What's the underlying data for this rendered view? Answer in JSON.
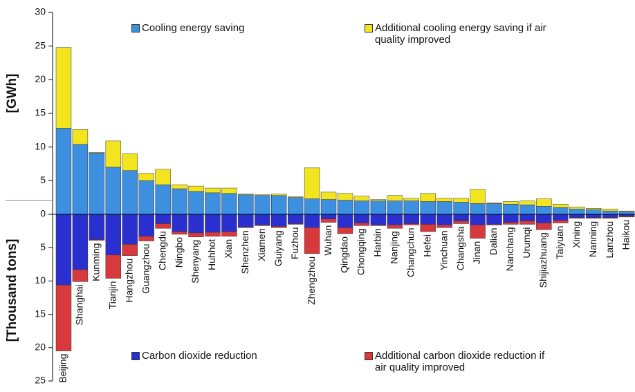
{
  "chart_data": {
    "type": "bar",
    "y_label": "[GWh]",
    "y2_label": "[Thousand tons]",
    "ylim": [
      0,
      30
    ],
    "yticks": [
      0,
      5,
      10,
      15,
      20,
      25,
      30
    ],
    "y2lim": [
      0,
      25
    ],
    "y2ticks": [
      5,
      10,
      15,
      20,
      25
    ],
    "categories": [
      "Beijing",
      "Shanghai",
      "Kunming",
      "Tianjin",
      "Hangzhou",
      "Guangzhou",
      "Chengdu",
      "Ningbo",
      "Shenyang",
      "Huhhot",
      "Xian",
      "Shenzhen",
      "Xiamen",
      "Guiyang",
      "Fuzhou",
      "Zhengzhou",
      "Wuhan",
      "Qingdao",
      "Chongqing",
      "Harbin",
      "Nanjing",
      "Changchun",
      "Hefei",
      "Yinchuan",
      "Changsha",
      "Jinan",
      "Dalian",
      "Nanchang",
      "Urumqi",
      "Shijiazhuang",
      "Taiyuan",
      "Xining",
      "Nanning",
      "Lanzhou",
      "Haikou"
    ],
    "series": [
      {
        "name": "Cooling energy saving",
        "color": "#3d8fe0",
        "axis": "y",
        "values": [
          12.8,
          10.4,
          9.1,
          7.0,
          6.5,
          5.0,
          4.4,
          3.8,
          3.4,
          3.2,
          3.1,
          2.9,
          2.8,
          2.8,
          2.5,
          2.3,
          2.2,
          2.1,
          2.0,
          2.0,
          2.0,
          2.0,
          1.9,
          1.9,
          1.8,
          1.6,
          1.6,
          1.5,
          1.4,
          1.2,
          1.0,
          0.8,
          0.7,
          0.5,
          0.4
        ]
      },
      {
        "name": "Additional cooling energy saving if air quality improved",
        "color": "#f2e41e",
        "axis": "y",
        "values": [
          12.0,
          2.2,
          0.1,
          3.9,
          2.5,
          1.1,
          2.3,
          0.6,
          0.8,
          0.7,
          0.8,
          0.1,
          0.1,
          0.2,
          0.1,
          4.6,
          1.1,
          1.0,
          0.7,
          0.2,
          0.8,
          0.4,
          1.2,
          0.5,
          0.6,
          2.1,
          0.1,
          0.4,
          0.6,
          1.1,
          0.5,
          0.3,
          0.2,
          0.3,
          0.1
        ]
      },
      {
        "name": "Carbon dioxide reduction",
        "color": "#2a30cf",
        "axis": "y2",
        "values": [
          10.6,
          8.3,
          3.8,
          6.1,
          4.5,
          3.3,
          1.4,
          2.6,
          2.8,
          2.7,
          2.6,
          1.9,
          1.6,
          1.8,
          1.4,
          2.0,
          0.7,
          2.0,
          1.3,
          1.6,
          1.6,
          1.4,
          1.5,
          1.6,
          1.0,
          1.6,
          1.5,
          1.2,
          1.0,
          1.3,
          0.9,
          0.5,
          0.5,
          0.5,
          0.3
        ]
      },
      {
        "name": "Additional carbon dioxide reduction if air quality improved",
        "color": "#d8393c",
        "axis": "y2",
        "values": [
          9.9,
          1.8,
          0.1,
          3.5,
          1.7,
          0.7,
          0.7,
          0.4,
          0.6,
          0.6,
          0.7,
          0.1,
          0.1,
          0.2,
          0.1,
          3.9,
          0.5,
          0.9,
          0.4,
          0.1,
          0.5,
          0.2,
          1.1,
          0.4,
          0.4,
          2.0,
          0.1,
          0.3,
          0.5,
          1.0,
          0.4,
          0.1,
          0.1,
          0.1,
          0.1
        ]
      }
    ]
  }
}
